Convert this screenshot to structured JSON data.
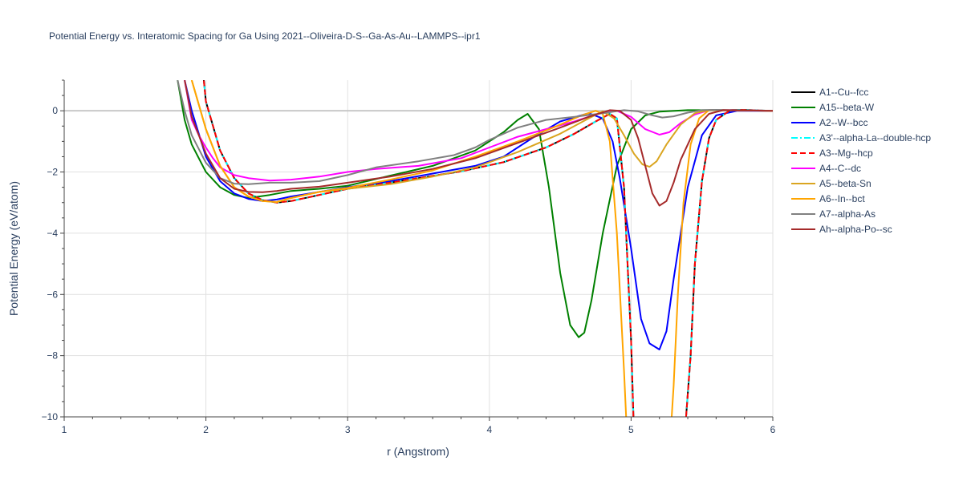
{
  "chart_data": {
    "type": "line",
    "title": "Potential Energy vs. Interatomic Spacing for Ga Using 2021--Oliveira-D-S--Ga-As-Au--LAMMPS--ipr1",
    "xlabel": "r (Angstrom)",
    "ylabel": "Potential Energy (eV/atom)",
    "xlim": [
      1,
      6
    ],
    "ylim": [
      -10,
      1
    ],
    "xticks": [
      1,
      2,
      3,
      4,
      5,
      6
    ],
    "yticks": [
      0,
      -2,
      -4,
      -6,
      -8,
      -10
    ],
    "xtick_labels": [
      "1",
      "2",
      "3",
      "4",
      "5",
      "6"
    ],
    "ytick_labels": [
      "0",
      "−2",
      "−4",
      "−6",
      "−8",
      "−10"
    ],
    "grid": true,
    "legend_position": "right",
    "series": [
      {
        "name": "A1--Cu--fcc",
        "color": "#000000",
        "dash": "solid",
        "x": [
          1.9,
          2.0,
          2.1,
          2.2,
          2.3,
          2.4,
          2.5,
          2.6,
          2.8,
          3.0,
          3.2,
          3.5,
          3.8,
          4.1,
          4.4,
          4.6,
          4.75,
          4.85,
          4.9,
          4.95,
          5.0,
          5.02,
          5.38,
          5.42,
          5.45,
          5.5,
          5.55,
          5.6,
          5.7,
          5.8,
          5.9,
          6.0
        ],
        "y": [
          5.0,
          0.3,
          -1.3,
          -2.2,
          -2.7,
          -2.92,
          -3.0,
          -2.95,
          -2.75,
          -2.55,
          -2.42,
          -2.2,
          -1.98,
          -1.68,
          -1.2,
          -0.75,
          -0.35,
          -0.1,
          -0.25,
          -2.5,
          -7.5,
          -10.5,
          -10.5,
          -8.0,
          -5.0,
          -2.3,
          -0.9,
          -0.3,
          0.02,
          0.03,
          0.01,
          0.0
        ]
      },
      {
        "name": "A15--beta-W",
        "color": "#008000",
        "dash": "solid",
        "x": [
          1.8,
          1.85,
          1.9,
          2.0,
          2.1,
          2.2,
          2.3,
          2.45,
          2.6,
          2.8,
          3.0,
          3.3,
          3.6,
          3.9,
          4.1,
          4.2,
          4.27,
          4.35,
          4.42,
          4.5,
          4.57,
          4.63,
          4.67,
          4.72,
          4.8,
          4.9,
          5.0,
          5.1,
          5.2,
          5.4,
          5.6,
          6.0
        ],
        "y": [
          1.0,
          -0.3,
          -1.1,
          -2.0,
          -2.5,
          -2.75,
          -2.85,
          -2.75,
          -2.62,
          -2.55,
          -2.45,
          -2.12,
          -1.8,
          -1.3,
          -0.7,
          -0.3,
          -0.1,
          -0.6,
          -2.5,
          -5.3,
          -7.0,
          -7.4,
          -7.25,
          -6.2,
          -4.0,
          -1.8,
          -0.6,
          -0.15,
          -0.03,
          0.02,
          0.02,
          0.0
        ]
      },
      {
        "name": "A2--W--bcc",
        "color": "#0000ff",
        "dash": "solid",
        "x": [
          1.85,
          1.9,
          2.0,
          2.1,
          2.2,
          2.3,
          2.4,
          2.5,
          2.6,
          2.8,
          3.0,
          3.3,
          3.6,
          3.9,
          4.1,
          4.3,
          4.5,
          4.7,
          4.8,
          4.87,
          4.92,
          5.0,
          5.07,
          5.13,
          5.2,
          5.25,
          5.3,
          5.4,
          5.5,
          5.6,
          5.75,
          6.0
        ],
        "y": [
          1.0,
          0.0,
          -1.5,
          -2.3,
          -2.7,
          -2.88,
          -2.95,
          -2.9,
          -2.8,
          -2.65,
          -2.5,
          -2.3,
          -2.05,
          -1.8,
          -1.5,
          -0.9,
          -0.35,
          -0.08,
          -0.25,
          -1.0,
          -2.2,
          -4.5,
          -6.8,
          -7.6,
          -7.8,
          -7.2,
          -5.5,
          -2.5,
          -0.8,
          -0.15,
          0.0,
          0.0
        ]
      },
      {
        "name": "A3'--alpha-La--double-hcp",
        "color": "#00ffff",
        "dash": "dashdot",
        "x": [
          1.9,
          2.0,
          2.1,
          2.2,
          2.3,
          2.4,
          2.5,
          2.6,
          2.8,
          3.0,
          3.2,
          3.5,
          3.8,
          4.1,
          4.4,
          4.6,
          4.75,
          4.85,
          4.9,
          4.95,
          5.0,
          5.02,
          5.38,
          5.42,
          5.45,
          5.5,
          5.55,
          5.6,
          5.7,
          5.8,
          5.9,
          6.0
        ],
        "y": [
          5.0,
          0.3,
          -1.3,
          -2.2,
          -2.7,
          -2.92,
          -3.0,
          -2.95,
          -2.75,
          -2.55,
          -2.42,
          -2.2,
          -1.98,
          -1.68,
          -1.2,
          -0.75,
          -0.35,
          -0.1,
          -0.25,
          -2.5,
          -7.5,
          -10.5,
          -10.5,
          -8.0,
          -5.0,
          -2.3,
          -0.9,
          -0.3,
          0.02,
          0.03,
          0.01,
          0.0
        ]
      },
      {
        "name": "A3--Mg--hcp",
        "color": "#ff0000",
        "dash": "dash",
        "x": [
          1.9,
          2.0,
          2.1,
          2.2,
          2.3,
          2.4,
          2.5,
          2.6,
          2.8,
          3.0,
          3.2,
          3.5,
          3.8,
          4.1,
          4.4,
          4.6,
          4.75,
          4.85,
          4.9,
          4.95,
          5.0,
          5.02,
          5.38,
          5.42,
          5.45,
          5.5,
          5.55,
          5.6,
          5.7,
          5.8,
          5.9,
          6.0
        ],
        "y": [
          5.0,
          0.3,
          -1.3,
          -2.2,
          -2.7,
          -2.92,
          -3.0,
          -2.95,
          -2.75,
          -2.55,
          -2.42,
          -2.2,
          -1.98,
          -1.68,
          -1.2,
          -0.75,
          -0.35,
          -0.1,
          -0.25,
          -2.5,
          -7.5,
          -10.5,
          -10.5,
          -8.0,
          -5.0,
          -2.3,
          -0.9,
          -0.3,
          0.02,
          0.03,
          0.01,
          0.0
        ]
      },
      {
        "name": "A4--C--dc",
        "color": "#ff00ff",
        "dash": "solid",
        "x": [
          1.85,
          1.9,
          1.95,
          2.0,
          2.05,
          2.1,
          2.2,
          2.3,
          2.45,
          2.6,
          2.8,
          3.0,
          3.2,
          3.5,
          3.8,
          4.0,
          4.2,
          4.4,
          4.6,
          4.8,
          4.9,
          5.0,
          5.1,
          5.2,
          5.27,
          5.35,
          5.45,
          5.55,
          5.7,
          6.0
        ],
        "y": [
          1.0,
          -0.3,
          -0.8,
          -1.2,
          -1.55,
          -1.85,
          -2.1,
          -2.2,
          -2.28,
          -2.25,
          -2.15,
          -2.0,
          -1.9,
          -1.8,
          -1.55,
          -1.2,
          -0.85,
          -0.6,
          -0.35,
          -0.05,
          0.0,
          -0.2,
          -0.6,
          -0.78,
          -0.7,
          -0.4,
          -0.12,
          0.02,
          0.02,
          0.0
        ]
      },
      {
        "name": "A5--beta-Sn",
        "color": "#daa520",
        "dash": "solid",
        "x": [
          1.9,
          2.0,
          2.1,
          2.2,
          2.3,
          2.4,
          2.5,
          2.6,
          2.8,
          3.0,
          3.3,
          3.6,
          3.9,
          4.2,
          4.5,
          4.7,
          4.8,
          4.88,
          4.95,
          5.02,
          5.08,
          5.13,
          5.18,
          5.25,
          5.35,
          5.45,
          5.55,
          6.0
        ],
        "y": [
          1.0,
          -0.6,
          -1.8,
          -2.5,
          -2.8,
          -2.95,
          -2.98,
          -2.85,
          -2.65,
          -2.55,
          -2.4,
          -2.15,
          -1.85,
          -1.35,
          -0.75,
          -0.25,
          -0.02,
          -0.25,
          -0.8,
          -1.4,
          -1.75,
          -1.83,
          -1.65,
          -1.1,
          -0.45,
          -0.08,
          0.02,
          0.0
        ]
      },
      {
        "name": "A6--In--bct",
        "color": "#ffa500",
        "dash": "solid",
        "x": [
          1.9,
          2.0,
          2.1,
          2.2,
          2.3,
          2.4,
          2.5,
          2.6,
          2.8,
          3.0,
          3.3,
          3.6,
          3.9,
          4.2,
          4.45,
          4.65,
          4.75,
          4.8,
          4.85,
          4.9,
          4.95,
          4.97,
          5.28,
          5.3,
          5.33,
          5.37,
          5.42,
          5.48,
          5.55,
          5.65,
          6.0
        ],
        "y": [
          1.0,
          -0.6,
          -1.8,
          -2.5,
          -2.8,
          -2.95,
          -2.98,
          -2.85,
          -2.65,
          -2.52,
          -2.25,
          -1.95,
          -1.5,
          -1.0,
          -0.55,
          -0.15,
          0.0,
          -0.1,
          -1.0,
          -4.0,
          -8.5,
          -10.5,
          -10.5,
          -9.0,
          -6.0,
          -3.0,
          -1.1,
          -0.25,
          0.02,
          0.02,
          0.0
        ]
      },
      {
        "name": "A7--alpha-As",
        "color": "#808080",
        "dash": "solid",
        "x": [
          1.8,
          1.85,
          1.9,
          2.0,
          2.1,
          2.2,
          2.3,
          2.45,
          2.6,
          2.8,
          3.0,
          3.2,
          3.5,
          3.75,
          3.9,
          4.0,
          4.2,
          4.4,
          4.6,
          4.8,
          4.95,
          5.05,
          5.15,
          5.22,
          5.3,
          5.4,
          5.5,
          5.6,
          6.0
        ],
        "y": [
          1.0,
          0.0,
          -0.8,
          -1.7,
          -2.2,
          -2.38,
          -2.4,
          -2.35,
          -2.35,
          -2.3,
          -2.1,
          -1.85,
          -1.65,
          -1.45,
          -1.2,
          -0.95,
          -0.55,
          -0.3,
          -0.2,
          -0.08,
          0.02,
          -0.02,
          -0.15,
          -0.22,
          -0.18,
          -0.06,
          0.02,
          0.03,
          0.0
        ]
      },
      {
        "name": "Ah--alpha-Po--sc",
        "color": "#a52a2a",
        "dash": "solid",
        "x": [
          1.85,
          1.9,
          2.0,
          2.1,
          2.2,
          2.3,
          2.4,
          2.5,
          2.6,
          2.8,
          3.0,
          3.3,
          3.6,
          3.9,
          4.2,
          4.5,
          4.7,
          4.85,
          4.92,
          5.0,
          5.05,
          5.1,
          5.15,
          5.2,
          5.25,
          5.3,
          5.35,
          5.45,
          5.55,
          5.65,
          6.0
        ],
        "y": [
          1.0,
          -0.2,
          -1.4,
          -2.2,
          -2.55,
          -2.65,
          -2.66,
          -2.62,
          -2.55,
          -2.48,
          -2.35,
          -2.15,
          -1.9,
          -1.55,
          -1.05,
          -0.55,
          -0.2,
          0.02,
          0.0,
          -0.3,
          -0.9,
          -1.8,
          -2.7,
          -3.1,
          -2.95,
          -2.35,
          -1.6,
          -0.6,
          -0.1,
          0.02,
          0.0
        ]
      }
    ]
  }
}
